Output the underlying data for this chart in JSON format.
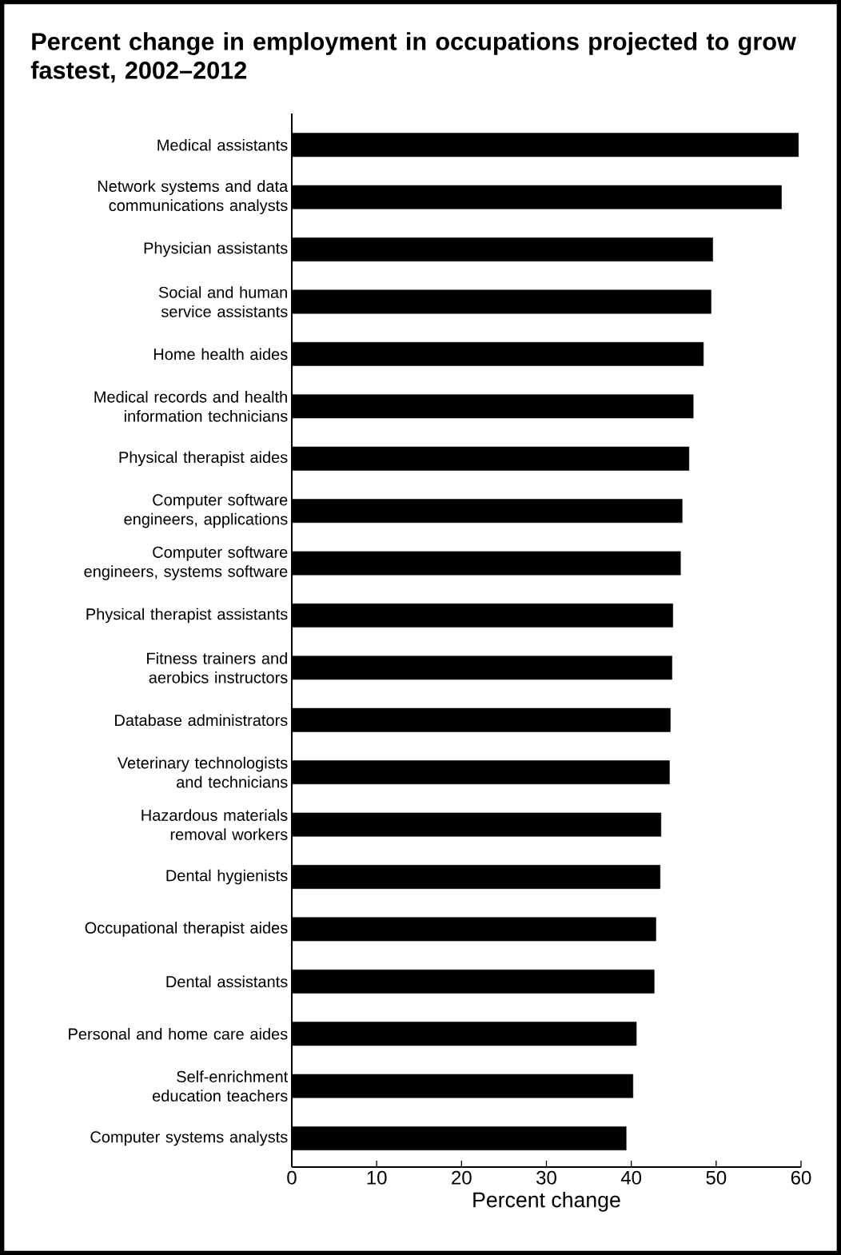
{
  "chart_data": {
    "type": "bar",
    "orientation": "horizontal",
    "title": "Percent change in employment in occupations projected to grow fastest, 2002–2012",
    "xlabel": "Percent change",
    "categories": [
      "Medical assistants",
      "Network systems and data communications analysts",
      "Physician assistants",
      "Social and human service assistants",
      "Home health aides",
      "Medical records and health information technicians",
      "Physical therapist aides",
      "Computer software engineers, applications",
      "Computer software engineers, systems software",
      "Physical therapist assistants",
      "Fitness trainers and aerobics instructors",
      "Database administrators",
      "Veterinary technologists and technicians",
      "Hazardous materials removal workers",
      "Dental hygienists",
      "Occupational therapist aides",
      "Dental assistants",
      "Personal and home care aides",
      "Self-enrichment education teachers",
      "Computer systems analysts"
    ],
    "values": [
      59.7,
      57.7,
      49.6,
      49.4,
      48.5,
      47.3,
      46.8,
      46.0,
      45.8,
      44.9,
      44.8,
      44.6,
      44.5,
      43.5,
      43.4,
      42.9,
      42.7,
      40.6,
      40.2,
      39.4
    ],
    "color": "#000000",
    "xlim": [
      0,
      60
    ],
    "xticks": [
      0,
      10,
      20,
      30,
      40,
      50,
      60
    ],
    "grid": false
  }
}
